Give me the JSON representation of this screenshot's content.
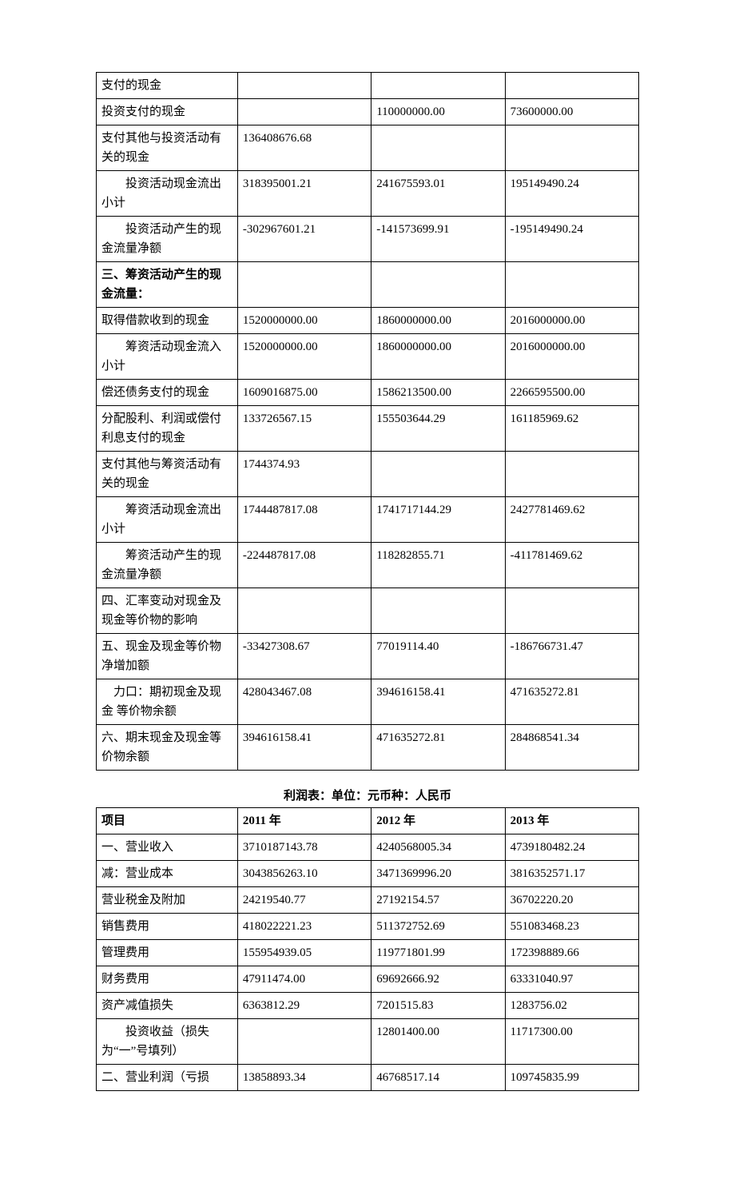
{
  "table1": {
    "rows": [
      {
        "label": "支付的现金",
        "v1": "",
        "v2": "",
        "v3": "",
        "labelClass": ""
      },
      {
        "label": "投资支付的现金",
        "v1": "",
        "v2": "110000000.00",
        "v3": "73600000.00",
        "labelClass": ""
      },
      {
        "label": "  支付其他与投资活动有关的现金",
        "v1": "136408676.68",
        "v2": "",
        "v3": "",
        "labelClass": ""
      },
      {
        "label": "　　投资活动现金流出小计",
        "v1": "318395001.21",
        "v2": "241675593.01",
        "v3": "195149490.24",
        "labelClass": ""
      },
      {
        "label": "　　投资活动产生的现金流量净额",
        "v1": "-302967601.21",
        "v2": "-141573699.91",
        "v3": "-195149490.24",
        "labelClass": ""
      },
      {
        "label": "  三、筹资活动产生的现金流量：",
        "v1": "",
        "v2": "",
        "v3": "",
        "labelClass": "bold"
      },
      {
        "label": "取得借款收到的现金",
        "v1": "1520000000.00",
        "v2": "1860000000.00",
        "v3": "2016000000.00",
        "labelClass": ""
      },
      {
        "label": "　　筹资活动现金流入小计",
        "v1": "1520000000.00",
        "v2": "1860000000.00",
        "v3": "2016000000.00",
        "labelClass": ""
      },
      {
        "label": "偿还债务支付的现金",
        "v1": "1609016875.00",
        "v2": "1586213500.00",
        "v3": "2266595500.00",
        "labelClass": ""
      },
      {
        "label": "  分配股利、利润或偿付利息支付的现金",
        "v1": "133726567.15",
        "v2": "155503644.29",
        "v3": "161185969.62",
        "labelClass": ""
      },
      {
        "label": "  支付其他与筹资活动有关的现金",
        "v1": "1744374.93",
        "v2": "",
        "v3": "",
        "labelClass": ""
      },
      {
        "label": "　　筹资活动现金流出小计",
        "v1": "1744487817.08",
        "v2": "1741717144.29",
        "v3": "2427781469.62",
        "labelClass": ""
      },
      {
        "label": "　　筹资活动产生的现金流量净额",
        "v1": "-224487817.08",
        "v2": "118282855.71",
        "v3": "-411781469.62",
        "labelClass": ""
      },
      {
        "label": "  四、汇率变动对现金及现金等价物的影响",
        "v1": "",
        "v2": "",
        "v3": "",
        "labelClass": ""
      },
      {
        "label": "  五、现金及现金等价物净增加额",
        "v1": "-33427308.67",
        "v2": "77019114.40",
        "v3": "-186766731.47",
        "labelClass": ""
      },
      {
        "label": "　力口：期初现金及现金  等价物余额",
        "v1": "428043467.08",
        "v2": "394616158.41",
        "v3": "471635272.81",
        "labelClass": ""
      },
      {
        "label": "  六、期末现金及现金等价物余额",
        "v1": "394616158.41",
        "v2": "471635272.81",
        "v3": "284868541.34",
        "labelClass": ""
      }
    ]
  },
  "table2": {
    "caption": "利润表：单位：元币种：人民币",
    "header": {
      "c0": "项目",
      "c1": "2011 年",
      "c2": "2012 年",
      "c3": "2013 年"
    },
    "rows": [
      {
        "label": "一、营业收入",
        "v1": "3710187143.78",
        "v2": "4240568005.34",
        "v3": "4739180482.24"
      },
      {
        "label": "减：营业成本",
        "v1": "3043856263.10",
        "v2": "3471369996.20",
        "v3": "3816352571.17"
      },
      {
        "label": "营业税金及附加",
        "v1": "24219540.77",
        "v2": "27192154.57",
        "v3": "36702220.20"
      },
      {
        "label": "销售费用",
        "v1": "418022221.23",
        "v2": "511372752.69",
        "v3": "551083468.23"
      },
      {
        "label": "管理费用",
        "v1": "155954939.05",
        "v2": "119771801.99",
        "v3": "172398889.66"
      },
      {
        "label": "财务费用",
        "v1": "47911474.00",
        "v2": "69692666.92",
        "v3": "63331040.97"
      },
      {
        "label": "资产减值损失",
        "v1": "6363812.29",
        "v2": "7201515.83",
        "v3": "1283756.02"
      },
      {
        "label": "　　投资收益（损失为“一”号填列）",
        "v1": "",
        "v2": "12801400.00",
        "v3": "11717300.00"
      },
      {
        "label": "二、营业利润（亏损",
        "v1": "13858893.34",
        "v2": "46768517.14",
        "v3": "109745835.99"
      }
    ]
  }
}
